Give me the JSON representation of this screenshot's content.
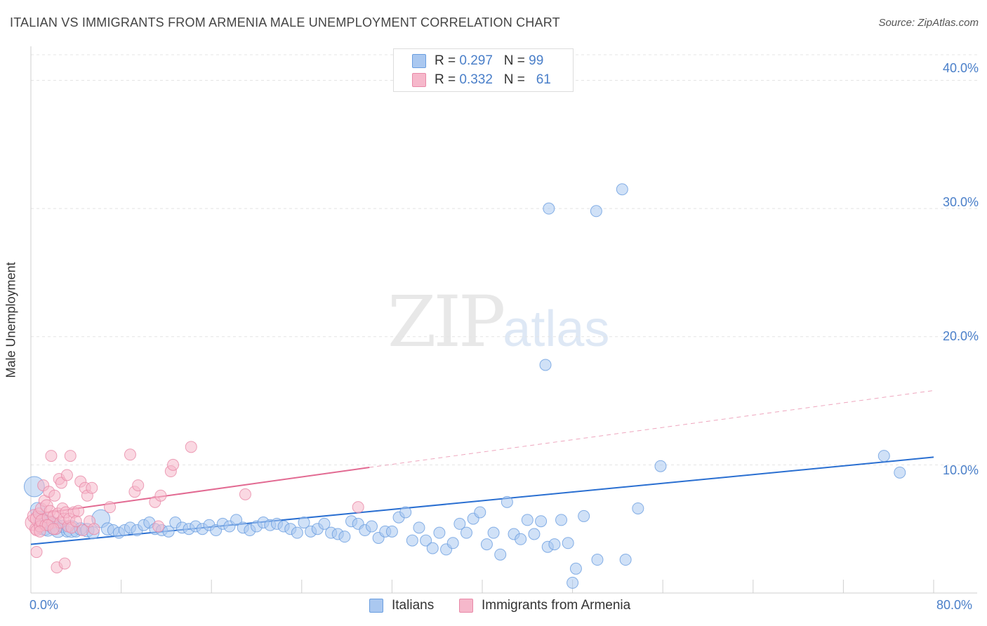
{
  "title": "ITALIAN VS IMMIGRANTS FROM ARMENIA MALE UNEMPLOYMENT CORRELATION CHART",
  "source": "Source: ZipAtlas.com",
  "watermark": {
    "zip": "ZIP",
    "atlas": "atlas"
  },
  "legend": {
    "italians": {
      "r_label": "R = ",
      "r_value": "0.297",
      "n_label": "N = ",
      "n_value": "99"
    },
    "armenia": {
      "r_label": "R = ",
      "r_value": "0.332",
      "n_label": "N = ",
      "n_value": "61"
    }
  },
  "bottom_legend": {
    "italians": "Italians",
    "armenia": "Immigrants from Armenia"
  },
  "colors": {
    "italians_fill": "#aac8f0",
    "italians_stroke": "#6a9ee0",
    "italians_line": "#2a6fd1",
    "armenia_fill": "#f6b8cb",
    "armenia_stroke": "#e889a8",
    "armenia_line": "#e26a92",
    "tick_text": "#4a7fc9",
    "grid": "#e4e4e4"
  },
  "chart_data": {
    "type": "scatter",
    "title": "ITALIAN VS IMMIGRANTS FROM ARMENIA MALE UNEMPLOYMENT CORRELATION CHART",
    "xlabel": "",
    "ylabel": "Male Unemployment",
    "xlim": [
      0,
      80
    ],
    "ylim": [
      0,
      42
    ],
    "x_tick_labels": [
      "0.0%",
      "80.0%"
    ],
    "y_ticks": [
      10,
      20,
      30,
      40
    ],
    "y_tick_labels": [
      "10.0%",
      "20.0%",
      "30.0%",
      "40.0%"
    ],
    "grid": true,
    "legend_position": "top-center",
    "series": [
      {
        "name": "Italians",
        "r": 0.297,
        "n": 99,
        "trend": {
          "x": [
            0,
            80
          ],
          "y": [
            3.8,
            10.6
          ],
          "style": "solid"
        },
        "points": [
          [
            0.3,
            8.3,
            1.8
          ],
          [
            0.6,
            6.5,
            1.3
          ],
          [
            0.9,
            5.8,
            1.3
          ],
          [
            1.2,
            5.3,
            1.8
          ],
          [
            1.5,
            5.0,
            1.3
          ],
          [
            1.8,
            5.6,
            1.0
          ],
          [
            2.1,
            5.2,
            1.5
          ],
          [
            2.4,
            4.9,
            1.3
          ],
          [
            2.8,
            5.2,
            1.1
          ],
          [
            3.2,
            4.8,
            1.0
          ],
          [
            3.6,
            5.0,
            1.5
          ],
          [
            4.0,
            4.8,
            1.0
          ],
          [
            4.4,
            5.0,
            1.1
          ],
          [
            5.0,
            4.9,
            1.2
          ],
          [
            5.5,
            4.7,
            1.1
          ],
          [
            6.2,
            5.8,
            1.6
          ],
          [
            6.8,
            5.0,
            1.1
          ],
          [
            7.3,
            4.9,
            1.0
          ],
          [
            7.8,
            4.7,
            1.0
          ],
          [
            8.3,
            4.9,
            1.0
          ],
          [
            8.8,
            5.1,
            1.0
          ],
          [
            9.4,
            4.9,
            1.0
          ],
          [
            10.0,
            5.3,
            1.0
          ],
          [
            10.5,
            5.5,
            1.0
          ],
          [
            11.0,
            5.0,
            1.0
          ],
          [
            11.6,
            4.9,
            1.0
          ],
          [
            12.2,
            4.8,
            1.0
          ],
          [
            12.8,
            5.5,
            1.0
          ],
          [
            13.4,
            5.1,
            1.0
          ],
          [
            14.0,
            5.0,
            1.0
          ],
          [
            14.6,
            5.2,
            1.0
          ],
          [
            15.2,
            5.0,
            1.0
          ],
          [
            15.8,
            5.3,
            1.0
          ],
          [
            16.4,
            4.9,
            1.0
          ],
          [
            17.0,
            5.4,
            1.0
          ],
          [
            17.6,
            5.2,
            1.0
          ],
          [
            18.2,
            5.7,
            1.0
          ],
          [
            18.8,
            5.1,
            1.0
          ],
          [
            19.4,
            4.9,
            1.0
          ],
          [
            20.0,
            5.2,
            1.0
          ],
          [
            20.6,
            5.5,
            1.0
          ],
          [
            21.2,
            5.3,
            1.0
          ],
          [
            21.8,
            5.4,
            1.0
          ],
          [
            22.4,
            5.2,
            1.0
          ],
          [
            23.0,
            5.0,
            1.0
          ],
          [
            23.6,
            4.7,
            1.0
          ],
          [
            24.2,
            5.5,
            1.0
          ],
          [
            24.8,
            4.8,
            1.0
          ],
          [
            25.4,
            5.0,
            1.0
          ],
          [
            26.0,
            5.4,
            1.0
          ],
          [
            26.6,
            4.7,
            1.0
          ],
          [
            27.2,
            4.6,
            1.0
          ],
          [
            27.8,
            4.4,
            1.0
          ],
          [
            28.4,
            5.6,
            1.0
          ],
          [
            29.0,
            5.4,
            1.0
          ],
          [
            29.6,
            4.9,
            1.0
          ],
          [
            30.2,
            5.2,
            1.0
          ],
          [
            30.8,
            4.3,
            1.0
          ],
          [
            31.4,
            4.8,
            1.0
          ],
          [
            32.0,
            4.8,
            1.0
          ],
          [
            32.6,
            5.9,
            1.0
          ],
          [
            33.2,
            6.3,
            1.0
          ],
          [
            33.8,
            4.1,
            1.0
          ],
          [
            34.4,
            5.1,
            1.0
          ],
          [
            35.0,
            4.1,
            1.0
          ],
          [
            35.6,
            3.5,
            1.0
          ],
          [
            36.2,
            4.7,
            1.0
          ],
          [
            36.8,
            3.4,
            1.0
          ],
          [
            37.4,
            3.9,
            1.0
          ],
          [
            38.0,
            5.4,
            1.0
          ],
          [
            38.6,
            4.7,
            1.0
          ],
          [
            39.2,
            5.8,
            1.0
          ],
          [
            39.8,
            6.3,
            1.0
          ],
          [
            40.4,
            3.8,
            1.0
          ],
          [
            41.0,
            4.7,
            1.0
          ],
          [
            41.6,
            3.0,
            1.0
          ],
          [
            42.2,
            7.1,
            1.0
          ],
          [
            42.8,
            4.6,
            1.0
          ],
          [
            43.4,
            4.2,
            1.0
          ],
          [
            44.0,
            5.7,
            1.0
          ],
          [
            44.6,
            4.6,
            1.0
          ],
          [
            45.2,
            5.6,
            1.0
          ],
          [
            45.8,
            3.6,
            1.0
          ],
          [
            46.4,
            3.8,
            1.0
          ],
          [
            47.0,
            5.7,
            1.0
          ],
          [
            47.6,
            3.9,
            1.0
          ],
          [
            48.3,
            1.9,
            1.0
          ],
          [
            49.0,
            6.0,
            1.0
          ],
          [
            50.2,
            2.6,
            1.0
          ],
          [
            52.7,
            2.6,
            1.0
          ],
          [
            53.8,
            6.6,
            1.0
          ],
          [
            55.8,
            9.9,
            1.0
          ],
          [
            75.6,
            10.7,
            1.0
          ],
          [
            77.0,
            9.4,
            1.0
          ],
          [
            45.6,
            17.8,
            1.0
          ],
          [
            45.9,
            30.0,
            1.0
          ],
          [
            50.1,
            29.8,
            1.0
          ],
          [
            52.4,
            31.5,
            1.0
          ],
          [
            48.0,
            0.8,
            1.0
          ]
        ]
      },
      {
        "name": "Immigrants from Armenia",
        "r": 0.332,
        "n": 61,
        "trend": {
          "x": [
            0,
            30
          ],
          "y": [
            6.1,
            9.8
          ],
          "style": "solid"
        },
        "trend_extension": {
          "x": [
            30,
            80
          ],
          "y": [
            9.8,
            15.8
          ],
          "style": "dashed"
        },
        "points": [
          [
            0.2,
            5.5,
            1.4
          ],
          [
            0.3,
            6.0,
            1.2
          ],
          [
            0.4,
            5.0,
            1.0
          ],
          [
            0.5,
            4.9,
            1.0
          ],
          [
            0.6,
            5.8,
            1.3
          ],
          [
            0.7,
            6.2,
            1.0
          ],
          [
            0.8,
            5.2,
            1.0
          ],
          [
            0.9,
            6.6,
            1.0
          ],
          [
            1.0,
            5.6,
            1.2
          ],
          [
            1.1,
            8.4,
            1.0
          ],
          [
            1.2,
            7.2,
            1.0
          ],
          [
            1.3,
            5.3,
            1.0
          ],
          [
            1.4,
            6.8,
            1.1
          ],
          [
            1.5,
            5.9,
            1.0
          ],
          [
            1.6,
            7.9,
            1.0
          ],
          [
            1.7,
            6.4,
            1.0
          ],
          [
            1.8,
            10.7,
            1.0
          ],
          [
            1.9,
            5.5,
            1.0
          ],
          [
            2.0,
            6.0,
            1.0
          ],
          [
            2.1,
            7.6,
            1.0
          ],
          [
            2.2,
            5.0,
            1.0
          ],
          [
            2.3,
            2.0,
            1.0
          ],
          [
            2.4,
            6.2,
            1.0
          ],
          [
            2.5,
            8.9,
            1.0
          ],
          [
            2.6,
            5.5,
            1.0
          ],
          [
            2.7,
            8.6,
            1.0
          ],
          [
            2.8,
            6.6,
            1.0
          ],
          [
            2.9,
            5.8,
            1.0
          ],
          [
            3.0,
            2.3,
            1.0
          ],
          [
            3.1,
            6.3,
            1.0
          ],
          [
            3.2,
            9.2,
            1.0
          ],
          [
            3.3,
            5.2,
            1.0
          ],
          [
            3.4,
            5.8,
            1.0
          ],
          [
            3.5,
            10.7,
            1.0
          ],
          [
            3.6,
            5.1,
            1.0
          ],
          [
            3.8,
            6.3,
            1.0
          ],
          [
            4.0,
            5.6,
            1.0
          ],
          [
            4.2,
            6.4,
            1.0
          ],
          [
            4.4,
            8.7,
            1.0
          ],
          [
            4.6,
            4.9,
            1.0
          ],
          [
            4.8,
            8.2,
            1.0
          ],
          [
            5.0,
            7.6,
            1.0
          ],
          [
            5.2,
            5.6,
            1.0
          ],
          [
            5.4,
            8.2,
            1.0
          ],
          [
            5.6,
            5.0,
            1.0
          ],
          [
            7.0,
            6.7,
            1.0
          ],
          [
            8.8,
            10.8,
            1.0
          ],
          [
            9.2,
            7.9,
            1.0
          ],
          [
            9.5,
            8.4,
            1.0
          ],
          [
            11.0,
            7.1,
            1.0
          ],
          [
            11.3,
            5.2,
            1.0
          ],
          [
            11.5,
            7.6,
            1.0
          ],
          [
            12.4,
            9.5,
            1.0
          ],
          [
            12.6,
            10.0,
            1.0
          ],
          [
            14.2,
            11.4,
            1.0
          ],
          [
            19.0,
            7.7,
            1.0
          ],
          [
            29.0,
            6.7,
            1.0
          ],
          [
            0.5,
            3.2,
            1.0
          ],
          [
            1.5,
            5.3,
            1.0
          ],
          [
            0.8,
            4.8,
            1.0
          ],
          [
            2.0,
            5.0,
            1.0
          ]
        ]
      }
    ]
  }
}
